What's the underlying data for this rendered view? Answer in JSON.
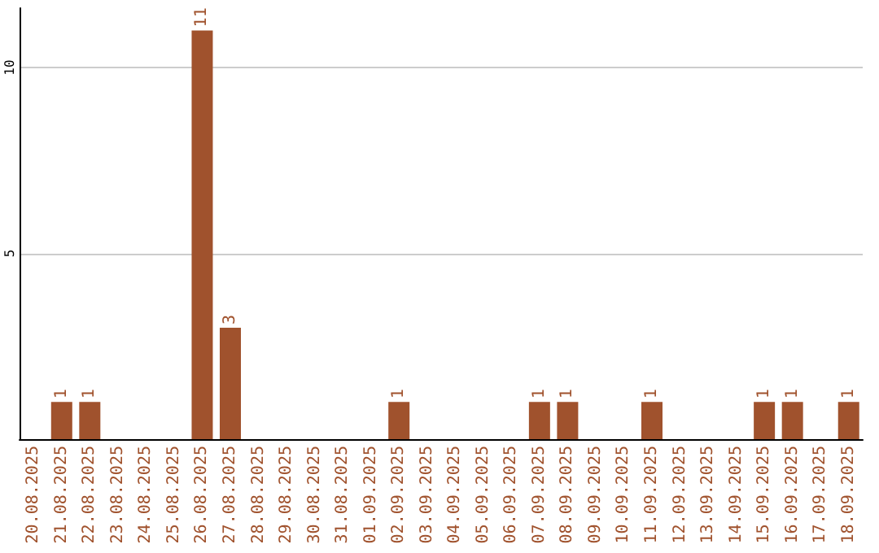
{
  "chart_data": {
    "type": "bar",
    "categories": [
      "20.08.2025",
      "21.08.2025",
      "22.08.2025",
      "23.08.2025",
      "24.08.2025",
      "25.08.2025",
      "26.08.2025",
      "27.08.2025",
      "28.08.2025",
      "29.08.2025",
      "30.08.2025",
      "31.08.2025",
      "01.09.2025",
      "02.09.2025",
      "03.09.2025",
      "04.09.2025",
      "05.09.2025",
      "06.09.2025",
      "07.09.2025",
      "08.09.2025",
      "09.09.2025",
      "10.09.2025",
      "11.09.2025",
      "12.09.2025",
      "13.09.2025",
      "14.09.2025",
      "15.09.2025",
      "16.09.2025",
      "17.09.2025",
      "18.09.2025"
    ],
    "values": [
      0,
      1,
      1,
      0,
      0,
      0,
      11,
      3,
      0,
      0,
      0,
      0,
      0,
      1,
      0,
      0,
      0,
      0,
      1,
      1,
      0,
      0,
      1,
      0,
      0,
      0,
      1,
      1,
      0,
      1
    ],
    "value_labels": [
      null,
      "1",
      "1",
      null,
      null,
      null,
      "11",
      "3",
      null,
      null,
      null,
      null,
      null,
      "1",
      null,
      null,
      null,
      null,
      "1",
      "1",
      null,
      null,
      "1",
      null,
      null,
      null,
      "1",
      "1",
      null,
      "1"
    ],
    "color": "#a0522d",
    "ylim": [
      0,
      11.6
    ],
    "yticks": [
      5,
      10
    ],
    "grid": "y"
  }
}
